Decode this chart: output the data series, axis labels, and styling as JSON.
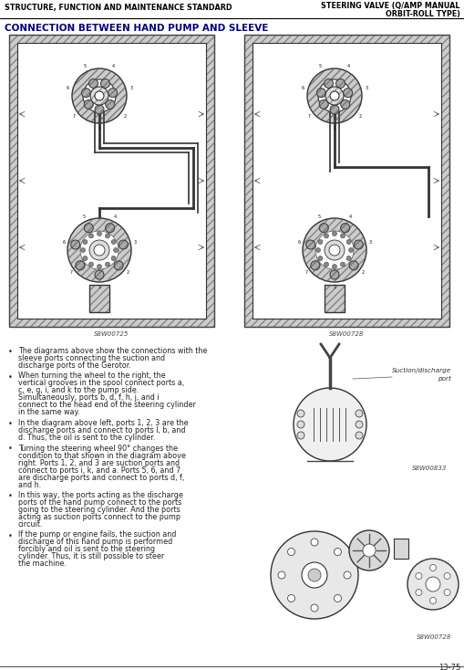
{
  "bg_color": "#ffffff",
  "header_left": "STRUCTURE, FUNCTION AND MAINTENANCE STANDARD",
  "header_right_line1": "STEERING VALVE (Q/AMP MANUAL",
  "header_right_line2": "ORBIT-ROLL TYPE)",
  "section_title": "CONNECTION BETWEEN HAND PUMP AND SLEEVE",
  "fig_label_left": "S8W00725",
  "fig_label_right": "S8W00728",
  "fig_label_upper_right": "S8W00833",
  "fig_label_lower_right": "S8W00728",
  "suction_label_line1": "Suction/discharge",
  "suction_label_line2": "port",
  "page_number": "13-75",
  "bullet_texts": [
    "The diagrams above show the connections with the sleeve ports connecting the suction and discharge ports of the Gerotor.",
    "When turning the wheel to the right, the vertical grooves in the spool connect ports a, c, e, g, i, and k to the pump side. Simultaneously, ports b, d, f, h, j, and i connect to the head end of the steering cylinder in the same way.",
    "In the diagram above left, ports 1, 2, 3 are the discharge ports and connect to ports l, b, and d. Thus, the oil is sent to the cylinder.",
    "Turning the steering wheel 90° changes the condition to that shown in the diagram above right. Ports 1, 2, and 3 are suction ports and connect to ports i, k, and a. Ports 5, 6, and 7 are discharge ports and connect to ports d, f, and h.",
    "In this way, the ports acting as the discharge ports of the hand pump connect to the ports going to the steering cylinder. And the ports acting as suction ports connect to the pump circuit.",
    "If the pump or engine fails, the suction and discharge of this hand pump is performed forcibly and oil is sent to the steering cylinder. Thus, it is still possible to steer the machine."
  ],
  "header_font_size": 5.8,
  "title_font_size": 7.5,
  "bullet_font_size": 5.8,
  "header_color": "#000000",
  "title_color": "#000080",
  "text_color": "#222222",
  "line_color": "#000000",
  "diagram_edge": "#444444",
  "diagram_hatch": "#888888",
  "diagram_fill": "#d8d8d8"
}
